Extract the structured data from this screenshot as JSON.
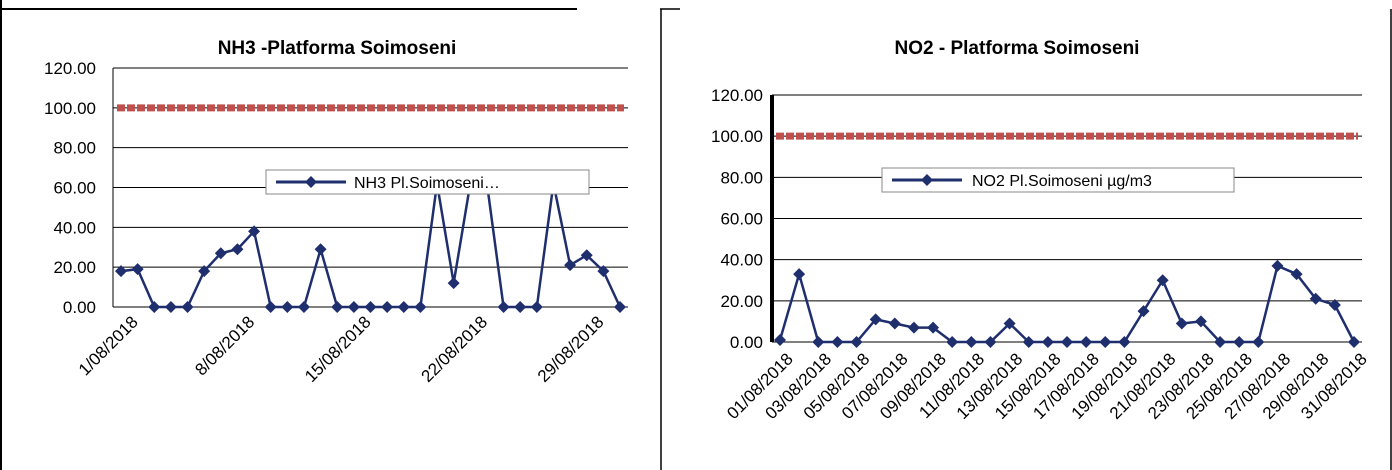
{
  "chart_data": [
    {
      "type": "line",
      "title": "NH3 -Platforma Soimoseni",
      "xlabel": "",
      "ylabel": "",
      "ylim": [
        0,
        120
      ],
      "y_ticks": [
        "0.00",
        "20.00",
        "40.00",
        "60.00",
        "80.00",
        "100.00",
        "120.00"
      ],
      "x_tick_labels": [
        "1/08/2018",
        "8/08/2018",
        "15/08/2018",
        "22/08/2018",
        "29/08/2018"
      ],
      "x_tick_index": [
        0,
        7,
        14,
        21,
        28
      ],
      "x": [
        "1/08/2018",
        "2/08/2018",
        "3/08/2018",
        "4/08/2018",
        "5/08/2018",
        "6/08/2018",
        "7/08/2018",
        "8/08/2018",
        "9/08/2018",
        "10/08/2018",
        "11/08/2018",
        "12/08/2018",
        "13/08/2018",
        "14/08/2018",
        "15/08/2018",
        "16/08/2018",
        "17/08/2018",
        "18/08/2018",
        "19/08/2018",
        "20/08/2018",
        "21/08/2018",
        "22/08/2018",
        "23/08/2018",
        "24/08/2018",
        "25/08/2018",
        "26/08/2018",
        "27/08/2018",
        "28/08/2018",
        "29/08/2018",
        "30/08/2018",
        "31/08/2018"
      ],
      "series": [
        {
          "name": "NH3 Pl.Soimoseni…",
          "values": [
            18,
            19,
            0,
            0,
            0,
            18,
            27,
            29,
            38,
            0,
            0,
            0,
            29,
            0,
            0,
            0,
            0,
            0,
            0,
            62,
            12,
            62,
            62,
            0,
            0,
            0,
            62,
            21,
            26,
            18,
            0
          ],
          "color": "#1f2f6e"
        }
      ],
      "limit_line": {
        "value": 100,
        "color": "#c0504d"
      },
      "grid": true,
      "legend": "center-right"
    },
    {
      "type": "line",
      "title": "NO2 - Platforma Soimoseni",
      "xlabel": "",
      "ylabel": "",
      "ylim": [
        0,
        120
      ],
      "y_ticks": [
        "0.00",
        "20.00",
        "40.00",
        "60.00",
        "80.00",
        "100.00",
        "120.00"
      ],
      "x_tick_labels": [
        "01/08/2018",
        "03/08/2018",
        "05/08/2018",
        "07/08/2018",
        "09/08/2018",
        "11/08/2018",
        "13/08/2018",
        "15/08/2018",
        "17/08/2018",
        "19/08/2018",
        "21/08/2018",
        "23/08/2018",
        "25/08/2018",
        "27/08/2018",
        "29/08/2018",
        "31/08/2018"
      ],
      "x_tick_index": [
        0,
        2,
        4,
        6,
        8,
        10,
        12,
        14,
        16,
        18,
        20,
        22,
        24,
        26,
        28,
        30
      ],
      "x": [
        "01/08/2018",
        "02/08/2018",
        "03/08/2018",
        "04/08/2018",
        "05/08/2018",
        "06/08/2018",
        "07/08/2018",
        "08/08/2018",
        "09/08/2018",
        "10/08/2018",
        "11/08/2018",
        "12/08/2018",
        "13/08/2018",
        "14/08/2018",
        "15/08/2018",
        "16/08/2018",
        "17/08/2018",
        "18/08/2018",
        "19/08/2018",
        "20/08/2018",
        "21/08/2018",
        "22/08/2018",
        "23/08/2018",
        "24/08/2018",
        "25/08/2018",
        "26/08/2018",
        "27/08/2018",
        "28/08/2018",
        "29/08/2018",
        "30/08/2018",
        "31/08/2018"
      ],
      "series": [
        {
          "name": "NO2 Pl.Soimoseni µg/m3",
          "values": [
            1,
            33,
            0,
            0,
            0,
            11,
            9,
            7,
            7,
            0,
            0,
            0,
            9,
            0,
            0,
            0,
            0,
            0,
            0,
            15,
            30,
            9,
            10,
            0,
            0,
            0,
            37,
            33,
            21,
            18,
            0
          ],
          "color": "#1f2f6e"
        }
      ],
      "limit_line": {
        "value": 100,
        "color": "#c0504d"
      },
      "grid": true,
      "legend": "center-right"
    }
  ]
}
